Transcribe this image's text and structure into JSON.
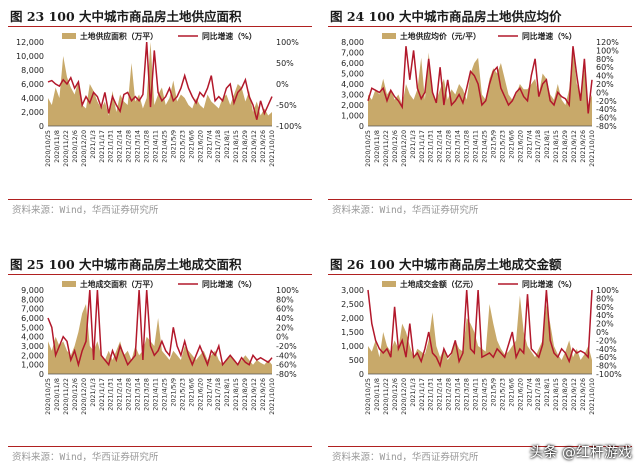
{
  "watermark": "头条 @红杆游戏",
  "colors": {
    "area": "#C8A96A",
    "line": "#B2182B",
    "rule": "#B02020"
  },
  "chart_data": [
    {
      "type": "area",
      "title": "图 23  100 大中城市商品房土地供应面积",
      "source": "资料来源：Wind，华西证券研究所",
      "legend": [
        "土地供应面积（万平）",
        "同比增速（%）"
      ],
      "y_left": {
        "ticks": [
          "0",
          "2,000",
          "4,000",
          "6,000",
          "8,000",
          "10,000",
          "12,000"
        ],
        "min": 0,
        "max": 12000
      },
      "y_right": {
        "ticks": [
          "-100%",
          "-50%",
          "0%",
          "50%",
          "100%"
        ],
        "min": -100,
        "max": 100
      },
      "x_ticks": [
        "2020/10/25",
        "2020/11/8",
        "2020/11/22",
        "2020/12/6",
        "2020/12/20",
        "2021/1/3",
        "2021/1/17",
        "2021/1/31",
        "2021/2/14",
        "2021/2/28",
        "2021/3/14",
        "2021/3/28",
        "2021/4/11",
        "2021/4/25",
        "2021/5/9",
        "2021/5/23",
        "2021/6/6",
        "2021/6/20",
        "2021/7/4",
        "2021/7/18",
        "2021/8/1",
        "2021/8/15",
        "2021/8/29",
        "2021/9/12",
        "2021/9/26",
        "2021/10/10"
      ],
      "series": [
        {
          "name": "土地供应面积（万平）",
          "axis": "left",
          "values": [
            4000,
            3000,
            5500,
            4000,
            10000,
            7000,
            5500,
            4500,
            6500,
            3000,
            2500,
            6000,
            5000,
            3500,
            2500,
            3500,
            1500,
            5000,
            2000,
            4500,
            3500,
            3000,
            9000,
            3500,
            4500,
            2500,
            4000,
            12000,
            3000,
            4500,
            5500,
            3000,
            4000,
            6500,
            3500,
            4500,
            4000,
            3000,
            2500,
            4000,
            3000,
            2500,
            4500,
            3500,
            3000,
            2500,
            4000,
            4500,
            3000,
            4500,
            6000,
            5500,
            3500,
            5000,
            2000,
            3500,
            1500,
            2500,
            1500,
            2000
          ]
        },
        {
          "name": "同比增速（%）",
          "axis": "right",
          "values": [
            5,
            8,
            0,
            -5,
            10,
            0,
            15,
            -10,
            5,
            -50,
            -30,
            -45,
            -20,
            -30,
            -55,
            -20,
            -70,
            -30,
            -50,
            -65,
            -25,
            -20,
            -40,
            -30,
            -40,
            -25,
            100,
            -55,
            80,
            -20,
            -40,
            -30,
            -10,
            -40,
            -30,
            -10,
            20,
            -10,
            -30,
            -45,
            -20,
            -30,
            -10,
            20,
            -40,
            -30,
            -40,
            -10,
            0,
            -45,
            -20,
            -10,
            10,
            -30,
            -50,
            -85,
            -40,
            -70,
            -50,
            -30
          ]
        }
      ]
    },
    {
      "type": "area",
      "title": "图 24  100 大中城市商品房土地供应均价",
      "source": "资料来源：Wind，华西证券研究所",
      "legend": [
        "土地供应均价（元/平）",
        "同比增速（%）"
      ],
      "y_left": {
        "ticks": [
          "0",
          "1,000",
          "2,000",
          "3,000",
          "4,000",
          "5,000",
          "6,000",
          "7,000",
          "8,000"
        ],
        "min": 0,
        "max": 8000
      },
      "y_right": {
        "ticks": [
          "-80%",
          "-60%",
          "-40%",
          "-20%",
          "0%",
          "20%",
          "40%",
          "60%",
          "80%",
          "100%",
          "120%"
        ],
        "min": -80,
        "max": 120
      },
      "x_ticks": [
        "2020/10/25",
        "2020/11/8",
        "2020/11/22",
        "2020/12/6",
        "2020/12/20",
        "2021/1/3",
        "2021/1/17",
        "2021/1/31",
        "2021/2/14",
        "2021/2/28",
        "2021/3/14",
        "2021/3/28",
        "2021/4/11",
        "2021/4/25",
        "2021/5/9",
        "2021/5/23",
        "2021/6/6",
        "2021/6/20",
        "2021/7/4",
        "2021/7/18",
        "2021/8/1",
        "2021/8/15",
        "2021/8/29",
        "2021/9/12",
        "2021/9/26",
        "2021/10/10"
      ],
      "series": [
        {
          "name": "土地供应均价（元/平）",
          "axis": "left",
          "values": [
            3000,
            2500,
            3500,
            3000,
            4500,
            3000,
            3500,
            2500,
            3000,
            2000,
            4000,
            3000,
            2500,
            3500,
            6500,
            2500,
            7000,
            3000,
            2500,
            3500,
            4500,
            2500,
            3500,
            3000,
            4000,
            3500,
            2500,
            5000,
            6000,
            6500,
            3000,
            2500,
            4500,
            5500,
            5000,
            6000,
            4500,
            3000,
            2500,
            3000,
            4000,
            3500,
            3500,
            4000,
            4500,
            3000,
            5000,
            4500,
            3000,
            2500,
            4000,
            2500,
            2000,
            3500,
            7500,
            4000,
            3000,
            5500,
            2000,
            3000
          ]
        },
        {
          "name": "同比增速（%）",
          "axis": "right",
          "values": [
            -20,
            10,
            5,
            0,
            10,
            -20,
            5,
            -10,
            -20,
            -35,
            110,
            30,
            100,
            10,
            -15,
            0,
            80,
            0,
            -25,
            60,
            -30,
            30,
            -30,
            -20,
            -5,
            -25,
            10,
            50,
            40,
            20,
            -30,
            -20,
            20,
            50,
            60,
            10,
            -10,
            -30,
            -20,
            0,
            10,
            -10,
            -20,
            40,
            80,
            -10,
            20,
            30,
            -20,
            -30,
            0,
            -10,
            -15,
            -30,
            110,
            40,
            -20,
            80,
            -50,
            30
          ]
        }
      ]
    },
    {
      "type": "area",
      "title": "图 25  100 大中城市商品房土地成交面积",
      "source": "资料来源：Wind，华西证券研究所",
      "legend": [
        "土地成交面积（万平）",
        "同比增速（%）"
      ],
      "y_left": {
        "ticks": [
          "0",
          "1,000",
          "2,000",
          "3,000",
          "4,000",
          "5,000",
          "6,000",
          "7,000",
          "8,000",
          "9,000"
        ],
        "min": 0,
        "max": 9000
      },
      "y_right": {
        "ticks": [
          "-80%",
          "-60%",
          "-40%",
          "-20%",
          "0%",
          "20%",
          "40%",
          "60%",
          "80%",
          "100%"
        ],
        "min": -80,
        "max": 100
      },
      "x_ticks": [
        "2020/10/25",
        "2020/11/8",
        "2020/11/22",
        "2020/12/6",
        "2020/12/20",
        "2021/1/3",
        "2021/1/17",
        "2021/1/31",
        "2021/2/14",
        "2021/2/28",
        "2021/3/14",
        "2021/3/28",
        "2021/4/11",
        "2021/4/25",
        "2021/5/9",
        "2021/5/23",
        "2021/6/6",
        "2021/6/20",
        "2021/7/4",
        "2021/7/18",
        "2021/8/1",
        "2021/8/15",
        "2021/8/29",
        "2021/9/12",
        "2021/9/26",
        "2021/10/10"
      ],
      "series": [
        {
          "name": "土地成交面积（万平）",
          "axis": "left",
          "values": [
            3500,
            2500,
            4000,
            3000,
            3500,
            2500,
            2000,
            3000,
            4500,
            6500,
            7500,
            3000,
            2500,
            3500,
            2000,
            1500,
            2500,
            1500,
            2500,
            3500,
            2000,
            2500,
            1500,
            3000,
            2000,
            2500,
            4000,
            3500,
            3000,
            6000,
            2500,
            2000,
            1500,
            2500,
            2000,
            1500,
            3000,
            2500,
            2000,
            1500,
            2000,
            2500,
            1500,
            2000,
            2500,
            1500,
            1000,
            1500,
            2000,
            1500,
            1000,
            1500,
            2000,
            1500,
            1000,
            1500,
            1200,
            1000,
            1500,
            1000
          ]
        },
        {
          "name": "同比增速（%）",
          "axis": "right",
          "values": [
            40,
            20,
            -40,
            -20,
            0,
            -10,
            -50,
            -30,
            -60,
            -30,
            -10,
            100,
            -50,
            100,
            -40,
            -50,
            -60,
            -30,
            -50,
            -20,
            -40,
            -60,
            -50,
            -40,
            100,
            -50,
            100,
            -20,
            -40,
            -30,
            -10,
            -30,
            -40,
            20,
            -20,
            -40,
            -10,
            -40,
            -60,
            -40,
            -20,
            -40,
            -60,
            -30,
            -40,
            -20,
            -60,
            -50,
            -40,
            -50,
            -60,
            -45,
            -55,
            -60,
            -40,
            -50,
            -45,
            -50,
            -55,
            -45
          ]
        }
      ]
    },
    {
      "type": "area",
      "title": "图 26  100 大中城市商品房土地成交金额",
      "source": "资料来源：Wind，华西证券研究所",
      "legend": [
        "土地成交金额（亿元）",
        "同比增速（%）"
      ],
      "y_left": {
        "ticks": [
          "0",
          "500",
          "1,000",
          "1,500",
          "2,000",
          "2,500",
          "3,000"
        ],
        "min": 0,
        "max": 3000
      },
      "y_right": {
        "ticks": [
          "-100%",
          "-80%",
          "-60%",
          "-40%",
          "-20%",
          "0%",
          "20%",
          "40%",
          "60%",
          "80%",
          "100%"
        ],
        "min": -100,
        "max": 100
      },
      "x_ticks": [
        "2020/10/25",
        "2020/11/8",
        "2020/11/22",
        "2020/12/6",
        "2020/12/20",
        "2021/1/3",
        "2021/1/17",
        "2021/1/31",
        "2021/2/14",
        "2021/2/28",
        "2021/3/14",
        "2021/3/28",
        "2021/4/11",
        "2021/4/25",
        "2021/5/9",
        "2021/5/23",
        "2021/6/6",
        "2021/6/20",
        "2021/7/4",
        "2021/7/18",
        "2021/8/1",
        "2021/8/15",
        "2021/8/29",
        "2021/9/12",
        "2021/9/26",
        "2021/10/10"
      ],
      "series": [
        {
          "name": "土地成交金额（亿元）",
          "axis": "left",
          "values": [
            1000,
            800,
            1200,
            600,
            1500,
            1000,
            800,
            1200,
            900,
            1800,
            1500,
            1000,
            600,
            900,
            800,
            700,
            1200,
            2200,
            1000,
            600,
            900,
            500,
            700,
            1200,
            900,
            800,
            2000,
            1800,
            1500,
            1000,
            900,
            800,
            2500,
            1800,
            1200,
            900,
            700,
            800,
            1000,
            1200,
            2800,
            1500,
            1000,
            800,
            600,
            900,
            1200,
            2500,
            1800,
            1000,
            700,
            500,
            800,
            1200,
            600,
            900,
            500,
            700,
            1000,
            500
          ]
        },
        {
          "name": "同比增速（%）",
          "axis": "right",
          "values": [
            100,
            20,
            -20,
            -40,
            -50,
            -40,
            -60,
            60,
            -40,
            -20,
            -60,
            20,
            -60,
            -50,
            -70,
            -40,
            0,
            -50,
            -60,
            -80,
            -40,
            -60,
            -50,
            -20,
            -70,
            -50,
            100,
            -40,
            -50,
            100,
            -60,
            -55,
            -50,
            -60,
            -40,
            -50,
            -60,
            -30,
            0,
            -60,
            -40,
            -50,
            90,
            -40,
            -50,
            -60,
            -30,
            100,
            -20,
            -50,
            -60,
            -40,
            -50,
            -70,
            -40,
            -50,
            -45,
            -50,
            -60,
            100
          ]
        }
      ]
    }
  ]
}
